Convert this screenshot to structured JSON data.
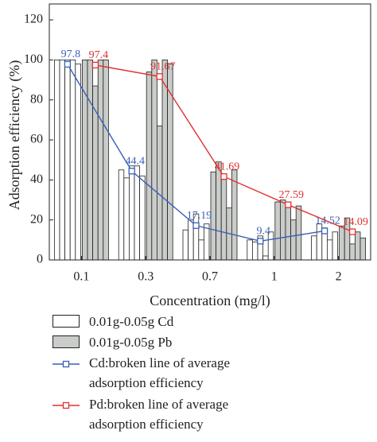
{
  "chart_data": {
    "type": "bar",
    "x_label": "Concentration (mg/l)",
    "y_label": "Adsorption efficiency (%)",
    "categories": [
      "0.1",
      "0.3",
      "0.7",
      "1",
      "2"
    ],
    "ylim": [
      0,
      120
    ],
    "yticks": [
      0,
      20,
      40,
      60,
      80,
      100,
      120
    ],
    "series": [
      {
        "name": "0.01g-0.05g Cd",
        "type": "bar",
        "color": "#ffffff",
        "values": [
          [
            100,
            100,
            100,
            100,
            98
          ],
          [
            45,
            41,
            47,
            47,
            42
          ],
          [
            15,
            20,
            23,
            10,
            18
          ],
          [
            10,
            9,
            12,
            2,
            14
          ],
          [
            12,
            18,
            16,
            10,
            14
          ]
        ]
      },
      {
        "name": "0.01g-0.05g Pb",
        "type": "bar",
        "color": "#c9ccc9",
        "values": [
          [
            100,
            100,
            87,
            100,
            100
          ],
          [
            94,
            100,
            67,
            100,
            98
          ],
          [
            44,
            49,
            42,
            26,
            45
          ],
          [
            29,
            30,
            29,
            20,
            27
          ],
          [
            17,
            21,
            8,
            14,
            11
          ]
        ]
      },
      {
        "name": "Cd:broken line of average adsorption efficiency",
        "type": "line",
        "group": 0,
        "color": "#3a5fb8",
        "values": [
          97.8,
          44.4,
          17.19,
          9.4,
          14.52
        ]
      },
      {
        "name": "Pd:broken line of average adsorption efficiency",
        "type": "line",
        "group": 1,
        "color": "#e0302e",
        "values": [
          97.4,
          91.67,
          41.69,
          27.59,
          14.09
        ]
      }
    ]
  }
}
